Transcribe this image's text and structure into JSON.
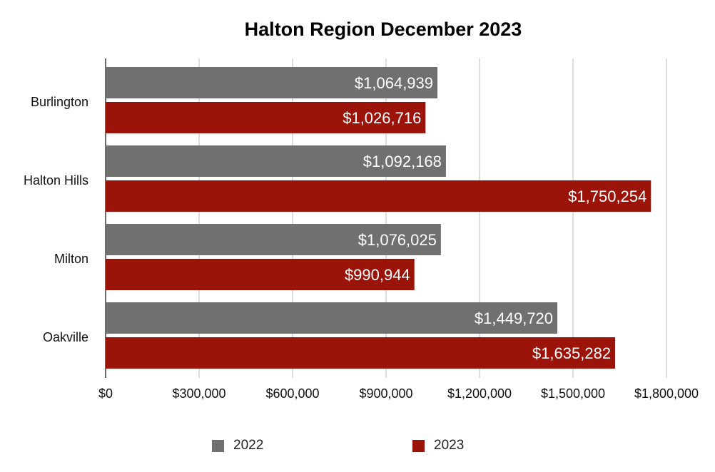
{
  "chart_data": {
    "type": "bar",
    "orientation": "horizontal",
    "title": "Halton Region December 2023",
    "categories": [
      "Burlington",
      "Halton Hills",
      "Milton",
      "Oakville"
    ],
    "series": [
      {
        "name": "2022",
        "color": "#6f716f",
        "values": [
          1064939,
          1092168,
          1076025,
          1449720
        ],
        "labels": [
          "$1,064,939",
          "$1,092,168",
          "$1,076,025",
          "$1,449,720"
        ]
      },
      {
        "name": "2023",
        "color": "#9c1409",
        "values": [
          1026716,
          1750254,
          990944,
          1635282
        ],
        "labels": [
          "$1,026,716",
          "$1,750,254",
          "$990,944",
          "$1,635,282"
        ]
      }
    ],
    "xlim": [
      0,
      1800000
    ],
    "ticks": [
      0,
      300000,
      600000,
      900000,
      1200000,
      1500000,
      1800000
    ],
    "tick_labels": [
      "$0",
      "$300,000",
      "$600,000",
      "$900,000",
      "$1,200,000",
      "$1,500,000",
      "$1,800,000"
    ],
    "grid": true,
    "legend_position": "bottom"
  }
}
